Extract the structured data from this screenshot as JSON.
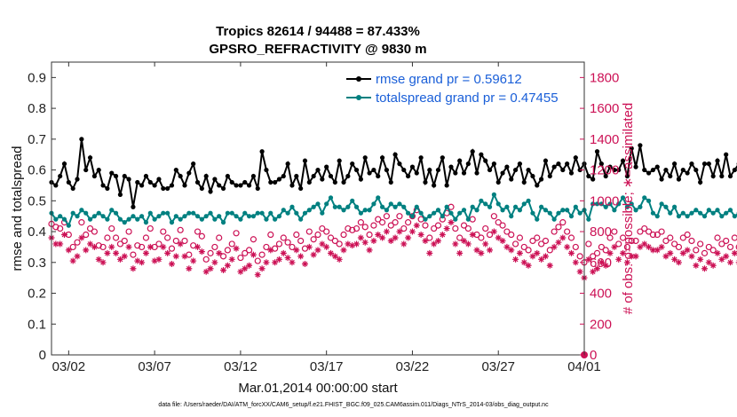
{
  "chart_data": {
    "type": "line",
    "title_line1": "Tropics 82614 / 94488 = 87.433%",
    "title_line2": "GPSRO_REFRACTIVITY @ 9830 m",
    "xlabel": "Mar.01,2014 00:00:00 start",
    "ylabel_left": "rmse and totalspread",
    "ylabel_right": "# of obs: o=possible; ∗=assimilated",
    "footnote": "data file: /Users/raeder/DAI/ATM_forcXX/CAM6_setup/f.e21.FHIST_BGC.f09_025.CAM6assim.011/Diags_NTrS_2014-03/obs_diag_output.nc",
    "ylim_left": [
      0,
      0.95
    ],
    "ylim_right": [
      0,
      1900
    ],
    "xlim_days": [
      0,
      31
    ],
    "x_tick_labels": [
      "03/02",
      "03/07",
      "03/12",
      "03/17",
      "03/22",
      "03/27",
      "04/01"
    ],
    "x_tick_days": [
      1,
      6,
      11,
      16,
      21,
      26,
      31
    ],
    "y_left_ticks": [
      "0",
      "0.1",
      "0.2",
      "0.3",
      "0.4",
      "0.5",
      "0.6",
      "0.7",
      "0.8",
      "0.9"
    ],
    "y_right_ticks": [
      "0",
      "200",
      "400",
      "600",
      "800",
      "1000",
      "1200",
      "1400",
      "1600",
      "1800"
    ],
    "legend": [
      {
        "name": "rmse grand pr = 0.59612",
        "color": "#000000"
      },
      {
        "name": "totalspread grand pr = 0.47455",
        "color": "#008080"
      }
    ],
    "x_step_days": 0.25,
    "rmse": [
      0.56,
      0.55,
      0.58,
      0.62,
      0.56,
      0.54,
      0.57,
      0.7,
      0.6,
      0.64,
      0.58,
      0.6,
      0.55,
      0.54,
      0.59,
      0.58,
      0.52,
      0.58,
      0.57,
      0.48,
      0.56,
      0.55,
      0.58,
      0.56,
      0.55,
      0.57,
      0.54,
      0.54,
      0.55,
      0.6,
      0.58,
      0.55,
      0.59,
      0.62,
      0.56,
      0.54,
      0.58,
      0.53,
      0.57,
      0.55,
      0.54,
      0.58,
      0.56,
      0.55,
      0.55,
      0.56,
      0.55,
      0.58,
      0.54,
      0.66,
      0.6,
      0.56,
      0.56,
      0.57,
      0.58,
      0.62,
      0.55,
      0.58,
      0.54,
      0.63,
      0.56,
      0.58,
      0.6,
      0.57,
      0.61,
      0.58,
      0.56,
      0.63,
      0.56,
      0.58,
      0.62,
      0.6,
      0.57,
      0.64,
      0.59,
      0.6,
      0.58,
      0.64,
      0.6,
      0.56,
      0.65,
      0.62,
      0.6,
      0.58,
      0.61,
      0.59,
      0.64,
      0.56,
      0.6,
      0.55,
      0.6,
      0.64,
      0.55,
      0.61,
      0.59,
      0.63,
      0.59,
      0.62,
      0.66,
      0.59,
      0.65,
      0.63,
      0.6,
      0.62,
      0.56,
      0.59,
      0.61,
      0.57,
      0.6,
      0.62,
      0.56,
      0.6,
      0.58,
      0.55,
      0.57,
      0.63,
      0.58,
      0.61,
      0.62,
      0.6,
      0.62,
      0.59,
      0.64,
      0.6,
      0.62,
      0.58,
      0.57,
      0.66,
      0.62,
      0.58,
      0.61,
      0.6,
      0.6,
      0.63,
      0.58,
      0.67,
      0.61,
      0.68,
      0.6,
      0.59,
      0.6,
      0.61,
      0.57,
      0.6,
      0.58,
      0.62,
      0.57,
      0.6,
      0.59,
      0.62,
      0.6,
      0.56,
      0.62,
      0.62,
      0.58,
      0.63,
      0.58,
      0.65,
      0.58,
      0.6,
      0.62,
      0.59,
      0.63,
      0.58,
      0.66,
      0.6,
      0.54,
      0.61,
      0.59,
      0.57,
      0.58,
      0.59,
      0.55,
      0.54,
      0.57,
      0.61,
      0.56,
      0.6,
      0.61,
      0.62,
      0.6,
      0.63,
      0.6,
      0.62,
      0.58,
      0.64,
      0.6,
      0.62,
      0.58,
      0.65,
      0.59,
      0.67,
      0.63,
      0.61,
      0.55,
      0.58,
      0.65,
      0.62,
      0.6,
      0.63,
      0.58,
      0.69,
      0.62,
      0.63,
      0.58,
      0.64,
      0.55,
      0.54,
      0.58,
      0.56,
      0.67,
      0.63,
      0.6,
      0.57,
      0.6,
      0.57,
      0.64,
      0.61,
      0.56
    ],
    "totalspread": [
      0.46,
      0.44,
      0.45,
      0.44,
      0.42,
      0.46,
      0.45,
      0.47,
      0.46,
      0.44,
      0.45,
      0.46,
      0.45,
      0.44,
      0.47,
      0.46,
      0.44,
      0.43,
      0.44,
      0.45,
      0.44,
      0.45,
      0.43,
      0.46,
      0.44,
      0.45,
      0.46,
      0.46,
      0.43,
      0.45,
      0.44,
      0.45,
      0.46,
      0.46,
      0.45,
      0.44,
      0.45,
      0.46,
      0.44,
      0.45,
      0.43,
      0.46,
      0.46,
      0.45,
      0.44,
      0.46,
      0.45,
      0.45,
      0.46,
      0.46,
      0.44,
      0.46,
      0.44,
      0.45,
      0.47,
      0.46,
      0.48,
      0.46,
      0.44,
      0.46,
      0.47,
      0.48,
      0.49,
      0.46,
      0.49,
      0.51,
      0.48,
      0.48,
      0.47,
      0.48,
      0.5,
      0.48,
      0.46,
      0.47,
      0.47,
      0.49,
      0.51,
      0.48,
      0.47,
      0.49,
      0.48,
      0.49,
      0.48,
      0.46,
      0.45,
      0.48,
      0.46,
      0.44,
      0.45,
      0.46,
      0.47,
      0.45,
      0.48,
      0.46,
      0.44,
      0.46,
      0.47,
      0.44,
      0.48,
      0.47,
      0.5,
      0.49,
      0.48,
      0.52,
      0.49,
      0.47,
      0.48,
      0.45,
      0.48,
      0.47,
      0.49,
      0.5,
      0.46,
      0.44,
      0.48,
      0.47,
      0.46,
      0.44,
      0.46,
      0.47,
      0.47,
      0.45,
      0.48,
      0.46,
      0.47,
      0.44,
      0.49,
      0.49,
      0.49,
      0.48,
      0.49,
      0.47,
      0.49,
      0.51,
      0.48,
      0.49,
      0.47,
      0.48,
      0.51,
      0.5,
      0.46,
      0.45,
      0.49,
      0.48,
      0.46,
      0.48,
      0.45,
      0.46,
      0.45,
      0.46,
      0.47,
      0.46,
      0.45,
      0.47,
      0.46,
      0.47,
      0.45,
      0.46,
      0.47,
      0.45,
      0.46,
      0.48,
      0.48,
      0.47,
      0.46,
      0.48,
      0.44,
      0.46,
      0.48,
      0.47,
      0.48,
      0.47,
      0.48,
      0.47,
      0.46,
      0.48,
      0.47,
      0.48,
      0.49,
      0.48,
      0.49,
      0.47,
      0.45,
      0.48,
      0.46,
      0.47,
      0.48,
      0.46,
      0.47,
      0.48,
      0.47,
      0.49,
      0.5,
      0.47,
      0.48,
      0.49,
      0.5,
      0.48,
      0.47,
      0.47,
      0.48,
      0.46,
      0.47,
      0.46,
      0.47,
      0.46,
      0.47,
      0.46,
      0.46,
      0.48,
      0.47,
      0.47,
      0.46,
      0.48,
      0.48,
      0.47,
      0.49,
      0.5,
      0.48,
      0.47,
      0.5,
      0.48,
      0.49,
      0.46
    ],
    "obs_possible": [
      850,
      830,
      820,
      860,
      780,
      700,
      730,
      860,
      780,
      820,
      800,
      710,
      700,
      760,
      820,
      760,
      720,
      740,
      800,
      650,
      710,
      700,
      760,
      820,
      700,
      720,
      800,
      760,
      690,
      740,
      810,
      740,
      650,
      710,
      800,
      770,
      620,
      660,
      700,
      760,
      640,
      680,
      720,
      790,
      630,
      660,
      680,
      750,
      610,
      650,
      700,
      780,
      690,
      720,
      760,
      730,
      700,
      780,
      740,
      690,
      800,
      750,
      780,
      820,
      800,
      760,
      740,
      720,
      780,
      820,
      810,
      820,
      860,
      830,
      780,
      840,
      880,
      860,
      900,
      840,
      860,
      900,
      820,
      860,
      900,
      940,
      880,
      840,
      760,
      820,
      840,
      880,
      920,
      960,
      820,
      760,
      840,
      820,
      880,
      780,
      760,
      820,
      780,
      900,
      860,
      840,
      800,
      780,
      720,
      760,
      700,
      680,
      740,
      760,
      720,
      740,
      680,
      800,
      830,
      860,
      800,
      760,
      700,
      640,
      600,
      720,
      640,
      660,
      700,
      680,
      760,
      800,
      720,
      760,
      700,
      740,
      740,
      800,
      820,
      800,
      780,
      780,
      800,
      740,
      760,
      720,
      700,
      760,
      780,
      740,
      680,
      720,
      660,
      700,
      680,
      760,
      720,
      740,
      700,
      760,
      700,
      720,
      680,
      680,
      720,
      760,
      700,
      760,
      720,
      760,
      720,
      660,
      700,
      680,
      720,
      700,
      760,
      780,
      740,
      760,
      820,
      780,
      760,
      800,
      840,
      820,
      800,
      840,
      800,
      780,
      740,
      760,
      720,
      740,
      700,
      700,
      760,
      720,
      760,
      720,
      740,
      700,
      760,
      720,
      680,
      740,
      720,
      660,
      720,
      700,
      680,
      620,
      720,
      760,
      700,
      800,
      760,
      840,
      820,
      740,
      760,
      800,
      820
    ],
    "obs_assimilated": [
      760,
      720,
      720,
      780,
      680,
      610,
      640,
      760,
      680,
      720,
      700,
      620,
      600,
      660,
      700,
      660,
      620,
      640,
      700,
      560,
      610,
      600,
      660,
      700,
      610,
      620,
      700,
      660,
      590,
      640,
      720,
      640,
      560,
      610,
      700,
      670,
      540,
      560,
      600,
      660,
      550,
      580,
      620,
      690,
      540,
      560,
      580,
      650,
      520,
      560,
      600,
      680,
      600,
      620,
      660,
      630,
      600,
      680,
      640,
      590,
      700,
      650,
      680,
      720,
      700,
      660,
      640,
      620,
      680,
      720,
      710,
      720,
      760,
      730,
      680,
      740,
      780,
      760,
      800,
      740,
      760,
      800,
      720,
      760,
      800,
      840,
      780,
      740,
      660,
      720,
      740,
      780,
      820,
      860,
      720,
      660,
      740,
      720,
      780,
      680,
      660,
      720,
      680,
      800,
      760,
      740,
      700,
      680,
      620,
      660,
      600,
      580,
      640,
      660,
      620,
      640,
      580,
      700,
      730,
      760,
      700,
      660,
      600,
      540,
      500,
      620,
      540,
      560,
      600,
      580,
      660,
      700,
      620,
      660,
      600,
      640,
      640,
      700,
      720,
      700,
      680,
      680,
      700,
      640,
      660,
      620,
      600,
      660,
      680,
      640,
      580,
      620,
      560,
      600,
      580,
      660,
      620,
      640,
      600,
      660,
      600,
      620,
      580,
      580,
      620,
      660,
      600,
      660,
      620,
      660,
      620,
      560,
      600,
      580,
      620,
      600,
      660,
      680,
      640,
      660,
      720,
      680,
      660,
      700,
      740,
      720,
      700,
      740,
      700,
      680,
      640,
      660,
      620,
      640,
      600,
      600,
      660,
      620,
      660,
      620,
      640,
      600,
      660,
      620,
      580,
      640,
      620,
      560,
      620,
      600,
      580,
      520,
      620,
      660,
      600,
      700,
      660,
      740,
      720,
      640,
      660,
      700,
      720
    ]
  }
}
